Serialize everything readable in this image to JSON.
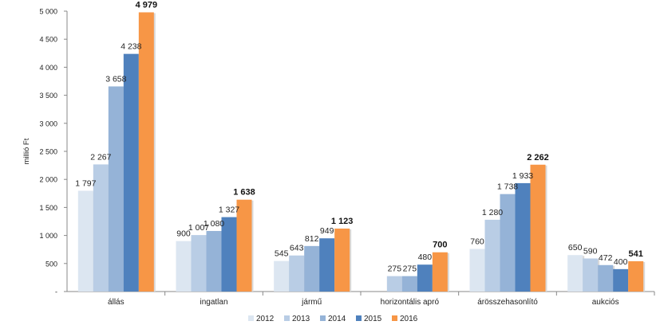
{
  "chart_data": {
    "type": "bar",
    "ylabel": "millió Ft",
    "ylim": [
      0,
      5000
    ],
    "yticks": [
      "-",
      "500",
      "1 000",
      "1 500",
      "2 000",
      "2 500",
      "3 000",
      "3 500",
      "4 000",
      "4 500",
      "5 000"
    ],
    "categories": [
      "állás",
      "ingatlan",
      "jármű",
      "horizontális apró",
      "árösszehasonlító",
      "aukciós"
    ],
    "series": [
      {
        "name": "2012",
        "color": "#dce6f1",
        "values": [
          1797,
          900,
          545,
          null,
          760,
          650
        ],
        "labels": [
          "1 797",
          "900",
          "545",
          "",
          "760",
          "650"
        ]
      },
      {
        "name": "2013",
        "color": "#b9cde5",
        "values": [
          2267,
          1007,
          643,
          275,
          1280,
          590
        ],
        "labels": [
          "2 267",
          "1 007",
          "643",
          "275",
          "1 280",
          "590"
        ]
      },
      {
        "name": "2014",
        "color": "#95b3d7",
        "values": [
          3658,
          1080,
          812,
          275,
          1738,
          472
        ],
        "labels": [
          "3 658",
          "1 080",
          "812",
          "275",
          "1 738",
          "472"
        ]
      },
      {
        "name": "2015",
        "color": "#4f81bd",
        "values": [
          4238,
          1327,
          949,
          480,
          1933,
          400
        ],
        "labels": [
          "4 238",
          "1 327",
          "949",
          "480",
          "1 933",
          "400"
        ]
      },
      {
        "name": "2016",
        "color": "#f79646",
        "values": [
          4979,
          1638,
          1123,
          700,
          2262,
          541
        ],
        "labels": [
          "4 979",
          "1 638",
          "1 123",
          "700",
          "2 262",
          "541"
        ]
      }
    ],
    "legend_position": "bottom",
    "grid": false
  }
}
